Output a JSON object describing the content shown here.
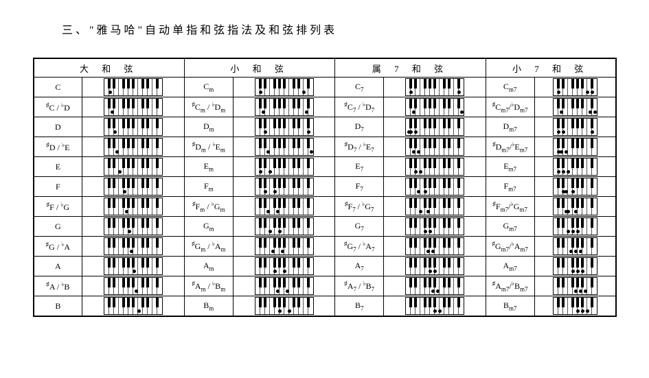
{
  "title": "三、\"雅马哈\"自动单指和弦指法及和弦排列表",
  "headers": [
    "大 和 弦",
    "小 和 弦",
    "属 7 和 弦",
    "小 7 和 弦"
  ],
  "piano": {
    "white_keys": 12,
    "white_width": 7,
    "black_positions": [
      5,
      12,
      26,
      33,
      40,
      54,
      61,
      75
    ],
    "small_white_keys": 9,
    "small_black_positions": [
      5,
      12,
      26,
      33,
      40,
      54
    ]
  },
  "rows": [
    {
      "maj": "C",
      "maj_dots": [
        1
      ],
      "min": "C<sub>m</sub>",
      "min_dots": [
        1,
        10
      ],
      "dom": "C<sub>7</sub>",
      "dom_dots": [
        1,
        11
      ],
      "m7": "C<sub>m7</sub>",
      "m7_dots": [
        1,
        7,
        8
      ]
    },
    {
      "maj": "<sup>♯</sup>C / <sup>♭</sup>D",
      "maj_dots": [
        1.5
      ],
      "min": "<sup>♯</sup>C<sub>m</sub> / <sup>♭</sup>D<sub>m</sub>",
      "min_dots": [
        1.5,
        10.5
      ],
      "dom": "<sup>♯</sup>C<sub>7</sub> / <sup>♭</sup>D<sub>7</sub>",
      "dom_dots": [
        1.5,
        11.5
      ],
      "m7": "<sup>♯</sup>C<sub>m7</sub>/<sup>♭</sup>D<sub>m7</sub>",
      "m7_dots": [
        1.5,
        7.5,
        8.5
      ]
    },
    {
      "maj": "D",
      "maj_dots": [
        2
      ],
      "min": "D<sub>m</sub>",
      "min_dots": [
        2,
        11
      ],
      "dom": "D<sub>7</sub>",
      "dom_dots": [
        2,
        0.5,
        1
      ],
      "m7": "D<sub>m7</sub>",
      "m7_dots": [
        2,
        8,
        1
      ]
    },
    {
      "maj": "<sup>♯</sup>D / <sup>♭</sup>E",
      "maj_dots": [
        2.5
      ],
      "min": "<sup>♯</sup>D<sub>m</sub> / <sup>♭</sup>E<sub>m</sub>",
      "min_dots": [
        2.5,
        11.5
      ],
      "dom": "<sup>♯</sup>D<sub>7</sub> / <sup>♭</sup>E<sub>7</sub>",
      "dom_dots": [
        2.5,
        1.5
      ],
      "m7": "<sup>♯</sup>D<sub>m7</sub>/<sup>♭</sup>E<sub>m7</sub>",
      "m7_dots": [
        2.5,
        1,
        1.5
      ]
    },
    {
      "maj": "E",
      "maj_dots": [
        3
      ],
      "min": "E<sub>m</sub>",
      "min_dots": [
        3,
        1
      ],
      "dom": "E<sub>7</sub>",
      "dom_dots": [
        3,
        2
      ],
      "m7": "E<sub>m7</sub>",
      "m7_dots": [
        3,
        1,
        2
      ]
    },
    {
      "maj": "F",
      "maj_dots": [
        4
      ],
      "min": "F<sub>m</sub>",
      "min_dots": [
        4,
        2
      ],
      "dom": "F<sub>7</sub>",
      "dom_dots": [
        4,
        2.5
      ],
      "m7": "F<sub>m7</sub>",
      "m7_dots": [
        4,
        2,
        2.5
      ]
    },
    {
      "maj": "<sup>♯</sup>F / <sup>♭</sup>G",
      "maj_dots": [
        4.5
      ],
      "min": "<sup>♯</sup>F<sub>m</sub> / <sup>♭</sup>G<sub>m</sub>",
      "min_dots": [
        4.5,
        2.5
      ],
      "dom": "<sup>♯</sup>F<sub>7</sub> / <sup>♭</sup>G<sub>7</sub>",
      "dom_dots": [
        4.5,
        3
      ],
      "m7": "<sup>♯</sup>F<sub>m7</sub>/<sup>♭</sup>G<sub>m7</sub>",
      "m7_dots": [
        4.5,
        2.5,
        3
      ]
    },
    {
      "maj": "G",
      "maj_dots": [
        5
      ],
      "min": "G<sub>m</sub>",
      "min_dots": [
        5,
        3
      ],
      "dom": "G<sub>7</sub>",
      "dom_dots": [
        5,
        4
      ],
      "m7": "G<sub>m7</sub>",
      "m7_dots": [
        5,
        3,
        4
      ]
    },
    {
      "maj": "<sup>♯</sup>G / <sup>♭</sup>A",
      "maj_dots": [
        5.5
      ],
      "min": "<sup>♯</sup>G<sub>m</sub> / <sup>♭</sup>A<sub>m</sub>",
      "min_dots": [
        5.5,
        3.5
      ],
      "dom": "<sup>♯</sup>G<sub>7</sub> / <sup>♭</sup>A<sub>7</sub>",
      "dom_dots": [
        5.5,
        4.5
      ],
      "m7": "<sup>♯</sup>G<sub>m7</sub>/<sup>♭</sup>A<sub>m7</sub>",
      "m7_dots": [
        5.5,
        3.5,
        4.5
      ]
    },
    {
      "maj": "A",
      "maj_dots": [
        6
      ],
      "min": "A<sub>m</sub>",
      "min_dots": [
        6,
        4
      ],
      "dom": "A<sub>7</sub>",
      "dom_dots": [
        6,
        5
      ],
      "m7": "A<sub>m7</sub>",
      "m7_dots": [
        6,
        4,
        5
      ]
    },
    {
      "maj": "<sup>♯</sup>A / <sup>♭</sup>B",
      "maj_dots": [
        6.5
      ],
      "min": "<sup>♯</sup>A<sub>m</sub> / <sup>♭</sup>B<sub>m</sub>",
      "min_dots": [
        6.5,
        4.5
      ],
      "dom": "<sup>♯</sup>A<sub>7</sub> / <sup>♭</sup>B<sub>7</sub>",
      "dom_dots": [
        6.5,
        5.5
      ],
      "m7": "<sup>♯</sup>A<sub>m7</sub>/<sup>♭</sup>B<sub>m7</sub>",
      "m7_dots": [
        6.5,
        4.5,
        5.5
      ]
    },
    {
      "maj": "B",
      "maj_dots": [
        7
      ],
      "min": "B<sub>m</sub>",
      "min_dots": [
        7,
        5
      ],
      "dom": "B<sub>7</sub>",
      "dom_dots": [
        7,
        6
      ],
      "m7": "B<sub>m7</sub>",
      "m7_dots": [
        7,
        5,
        6
      ]
    }
  ]
}
